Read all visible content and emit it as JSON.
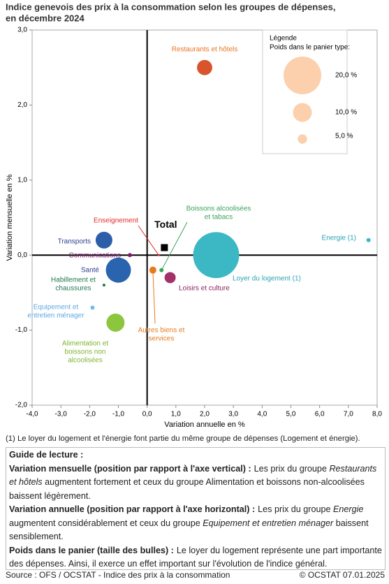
{
  "chart_data": {
    "type": "bubble",
    "title": [
      "Indice genevois des prix à la consommation selon les groupes de dépenses,",
      "en décembre 2024"
    ],
    "x_label": "Variation annuelle en %",
    "y_label": "Variation mensuelle en %",
    "xlim": [
      -4,
      8
    ],
    "ylim": [
      -2,
      3
    ],
    "xticks": [
      {
        "value": -4,
        "label": "-4,0"
      },
      {
        "value": -3,
        "label": "-3,0"
      },
      {
        "value": -2,
        "label": "-2,0"
      },
      {
        "value": -1,
        "label": "-1,0"
      },
      {
        "value": 0,
        "label": "0,0"
      },
      {
        "value": 1,
        "label": "1,0"
      },
      {
        "value": 2,
        "label": "2,0"
      },
      {
        "value": 3,
        "label": "3,0"
      },
      {
        "value": 4,
        "label": "4,0"
      },
      {
        "value": 5,
        "label": "5,0"
      },
      {
        "value": 6,
        "label": "6,0"
      },
      {
        "value": 7,
        "label": "7,0"
      },
      {
        "value": 8,
        "label": "8,0"
      }
    ],
    "yticks": [
      {
        "value": -2,
        "label": "-2,0"
      },
      {
        "value": -1,
        "label": "-1,0"
      },
      {
        "value": 0,
        "label": "0,0"
      },
      {
        "value": 1,
        "label": "1,0"
      },
      {
        "value": 2,
        "label": "2,0"
      },
      {
        "value": 3,
        "label": "3,0"
      }
    ],
    "points": [
      {
        "label": [
          "Restaurants et hôtels"
        ],
        "color": "#d9532c",
        "label_color": "#e8731e",
        "x": 2.0,
        "y": 2.5,
        "size": 8.1
      },
      {
        "label": [
          "Transports"
        ],
        "color": "#2d5fa8",
        "label_color": "#2a3f8f",
        "x": -1.5,
        "y": 0.2,
        "size": 8.9
      },
      {
        "label": [
          "Communications"
        ],
        "color": "#7b1a6e",
        "label_color": "#7b1a6e",
        "x": -0.6,
        "y": 0.0,
        "size": 2.2
      },
      {
        "label": [
          "Santé"
        ],
        "color": "#2a64ae",
        "label_color": "#2a3f8f",
        "x": -1.0,
        "y": -0.2,
        "size": 13.3
      },
      {
        "label": [
          "Habillement et",
          "chaussures"
        ],
        "color": "#1e7a4d",
        "label_color": "#1e7a4d",
        "x": -1.5,
        "y": -0.4,
        "size": 1.5
      },
      {
        "label": [
          "Equipement  et",
          "entretien ménager"
        ],
        "color": "#74b9e8",
        "label_color": "#5aa9e0",
        "x": -1.9,
        "y": -0.7,
        "size": 2.2
      },
      {
        "label": [
          "Alimentation et",
          "boissons non",
          "alcoolisées"
        ],
        "color": "#8cc63e",
        "label_color": "#7ab52e",
        "x": -1.1,
        "y": -0.9,
        "size": 9.6
      },
      {
        "label": [
          "Enseignement"
        ],
        "color": "#e62a2a",
        "label_color": "#e62a2a",
        "x": 0.4,
        "y": 0.0,
        "size": 1.1
      },
      {
        "label": [
          "Boissons alcoolisées",
          "et tabacs"
        ],
        "color": "#3aa35d",
        "label_color": "#3aa35d",
        "x": 0.5,
        "y": -0.2,
        "size": 2.2
      },
      {
        "label": [
          "Autres biens et",
          "services"
        ],
        "color": "#e87a1e",
        "label_color": "#e87a1e",
        "x": 0.2,
        "y": -0.2,
        "size": 3.7
      },
      {
        "label": [
          "Loisirs et culture"
        ],
        "color": "#a4306a",
        "label_color": "#8a2060",
        "x": 0.8,
        "y": -0.3,
        "size": 5.9
      },
      {
        "label": [
          "Loyer du logement (1)"
        ],
        "color": "#3cb7c4",
        "label_color": "#2aa3b2",
        "x": 2.4,
        "y": 0.0,
        "size": 24.4
      },
      {
        "label": [
          "Energie (1)"
        ],
        "color": "#3cb7c4",
        "label_color": "#2aa3b2",
        "x": 7.7,
        "y": 0.2,
        "size": 2.2
      }
    ],
    "total": {
      "label": "Total",
      "x": 0.6,
      "y": 0.1,
      "color": "#000000"
    },
    "size_legend": {
      "title": "Légende",
      "subtitle": "Poids dans le panier type:",
      "color": "#fcd0ac",
      "values": [
        20,
        10,
        5
      ],
      "value_labels": [
        "20,0 %",
        "10,0 %",
        "5,0 %"
      ]
    }
  },
  "footnote": "(1) Le loyer du logement et l'énergie font partie du même groupe de dépenses (Logement et énergie).",
  "guide": {
    "title": "Guide de lecture :",
    "paragraphs": [
      {
        "heading": "Variation mensuelle (position par rapport à l'axe vertical) :",
        "segments": [
          {
            "text": "Les prix du groupe",
            "italic": false
          },
          {
            "text": "Restaurants et hôtels",
            "italic": true
          },
          {
            "text": "augmentent fortement et ceux du groupe Alimentation et boissons non-alcoolisées baissent légèrement.",
            "italic": false
          }
        ]
      },
      {
        "heading": "Variation annuelle (position par rapport à l'axe horizontal) :",
        "segments": [
          {
            "text": "Les prix du groupe",
            "italic": false
          },
          {
            "text": "Energie",
            "italic": true
          },
          {
            "text": "augmentent considérablement et ceux du groupe",
            "italic": false
          },
          {
            "text": "Equipement et entretien ménager",
            "italic": true
          },
          {
            "text": "baissent sensiblement.",
            "italic": false
          }
        ]
      },
      {
        "heading": "Poids dans le panier (taille des bulles) :",
        "segments": [
          {
            "text": "Le loyer du logement représente une part importante des dépenses. Ainsi, il exerce un effet important sur l'évolution de l'indice général.",
            "italic": false
          }
        ]
      }
    ]
  },
  "source": "Source : OFS / OCSTAT - Indice des prix à la consommation",
  "copyright": "© OCSTAT 07.01.2025"
}
